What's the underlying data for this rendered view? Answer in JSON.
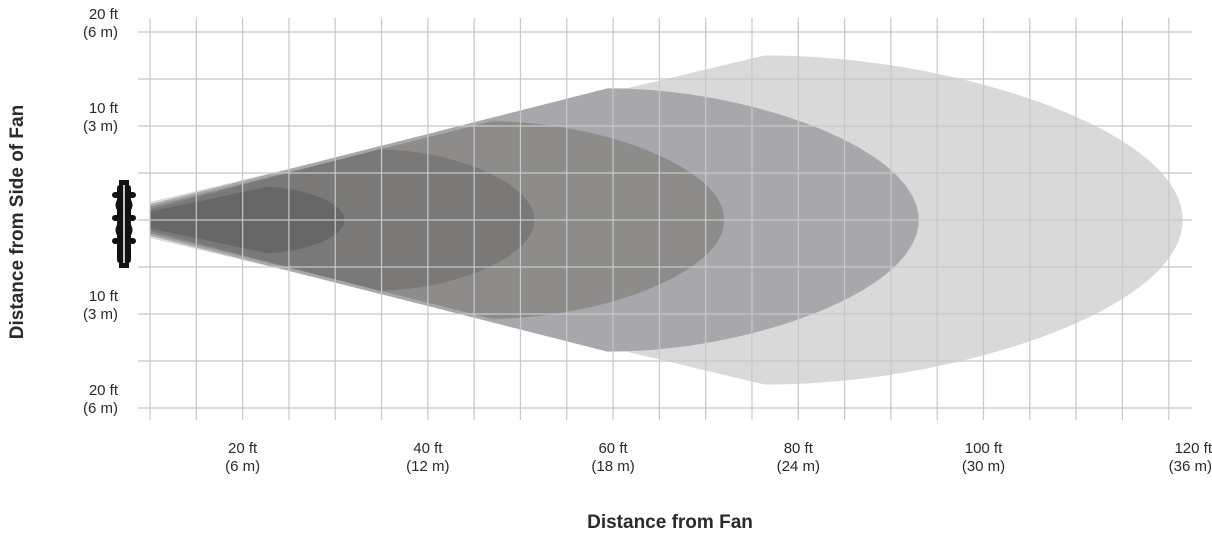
{
  "axes": {
    "x_title": "Distance from Fan",
    "y_title": "Distance from Side of Fan"
  },
  "x_ticks": [
    {
      "value": 20,
      "line1": "20 ft",
      "line2": "(6 m)"
    },
    {
      "value": 40,
      "line1": "40 ft",
      "line2": "(12 m)"
    },
    {
      "value": 60,
      "line1": "60 ft",
      "line2": "(18 m)"
    },
    {
      "value": 80,
      "line1": "80 ft",
      "line2": "(24 m)"
    },
    {
      "value": 100,
      "line1": "100 ft",
      "line2": "(30 m)"
    },
    {
      "value": 120,
      "line1": "120 ft",
      "line2": "(36 m)"
    }
  ],
  "y_ticks": [
    {
      "value": 20,
      "line1": "20 ft",
      "line2": "(6 m)"
    },
    {
      "value": 10,
      "line1": "10 ft",
      "line2": "(3 m)"
    },
    {
      "value": -10,
      "line1": "10 ft",
      "line2": "(3 m)"
    },
    {
      "value": -20,
      "line1": "20 ft",
      "line2": "(6 m)"
    }
  ],
  "ranges": {
    "x": [
      10,
      121
    ],
    "y": [
      -20,
      20
    ]
  },
  "zones": [
    {
      "name": "zone-1",
      "reach_ft": 121.5,
      "half_width_ft": 17.5,
      "color": "#d9d9d9"
    },
    {
      "name": "zone-2",
      "reach_ft": 93,
      "half_width_ft": 14,
      "color": "#a8a7ab"
    },
    {
      "name": "zone-3",
      "reach_ft": 72,
      "half_width_ft": 10.5,
      "color": "#8e8c8a"
    },
    {
      "name": "zone-4",
      "reach_ft": 51.5,
      "half_width_ft": 7.5,
      "color": "#7a7978"
    },
    {
      "name": "zone-5",
      "reach_ft": 31,
      "half_width_ft": 3.5,
      "color": "#676767"
    }
  ],
  "colors": {
    "grid": "#c8c8c8",
    "axis": "#bbbbbb",
    "fan": "#111111"
  },
  "fan_icon": "fan-side-view-icon"
}
